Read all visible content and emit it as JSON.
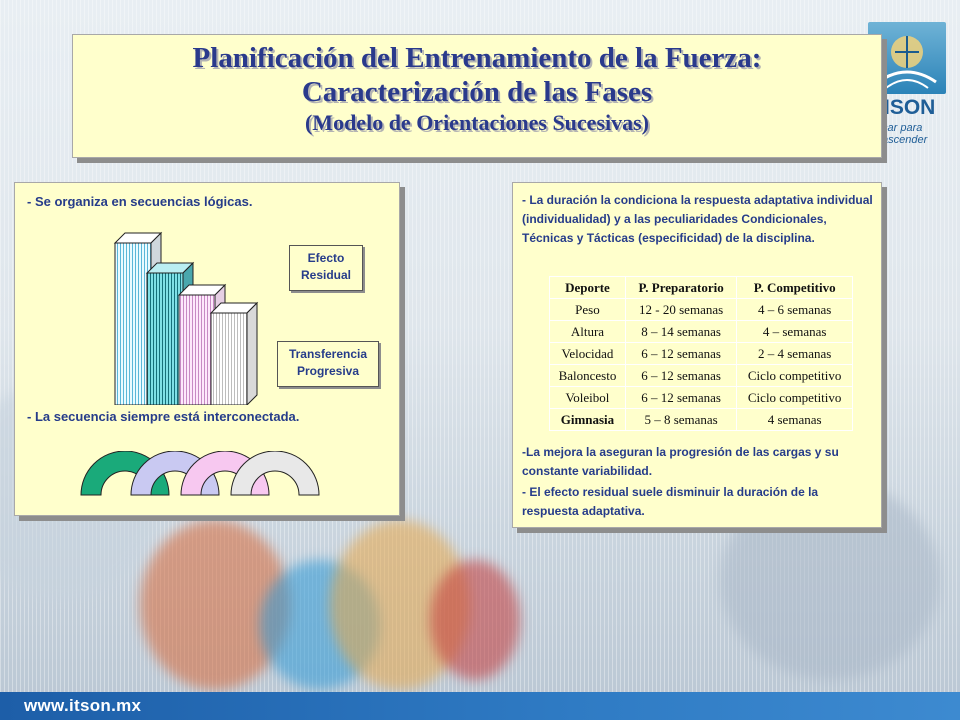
{
  "title": {
    "line1": "Planificación del Entrenamiento de la Fuerza:",
    "line2": "Caracterización de las Fases",
    "line3": "(Modelo de Orientaciones Sucesivas)"
  },
  "logo": {
    "name": "ISON",
    "tagline_1": "car para",
    "tagline_2": "ascender"
  },
  "left_panel": {
    "item1": "- Se organiza en secuencias lógicas.",
    "item2": "- La secuencia siempre está interconectada.",
    "box_residual": "Efecto\nResidual",
    "box_transfer": "Transferencia\nProgresiva",
    "bar_colors": [
      "#d8f4fb",
      "#5fd2dc",
      "#f5dcf4",
      "#ffffff"
    ],
    "arc_colors": [
      "#1aaa7a",
      "#c9c9f2",
      "#f7c8f0",
      "#e8e8e8"
    ]
  },
  "right_panel": {
    "intro": "- La duración la condiciona la respuesta adaptativa individual (individualidad)  y a las peculiaridades Condicionales,  Técnicas y Tácticas (especificidad) de la disciplina.",
    "table": {
      "headers": [
        "Deporte",
        "P. Preparatorio",
        "P. Competitivo"
      ],
      "rows": [
        [
          "Peso",
          "12 - 20 semanas",
          "4 – 6 semanas"
        ],
        [
          "Altura",
          "8 – 14 semanas",
          "4 – semanas"
        ],
        [
          "Velocidad",
          "6 – 12 semanas",
          "2 – 4 semanas"
        ],
        [
          "Baloncesto",
          "6 – 12 semanas",
          "Ciclo competitivo"
        ],
        [
          "Voleibol",
          "6 – 12 semanas",
          "Ciclo competitivo"
        ],
        [
          "Gimnasia",
          "5 – 8 semanas",
          "4 semanas"
        ]
      ]
    },
    "bullet1": "-La mejora la aseguran la progresión de  las cargas y su constante variabilidad.",
    "bullet2": "- El efecto residual suele disminuir la  duración de la respuesta adaptativa."
  },
  "footer": {
    "url": "www.itson.mx"
  }
}
